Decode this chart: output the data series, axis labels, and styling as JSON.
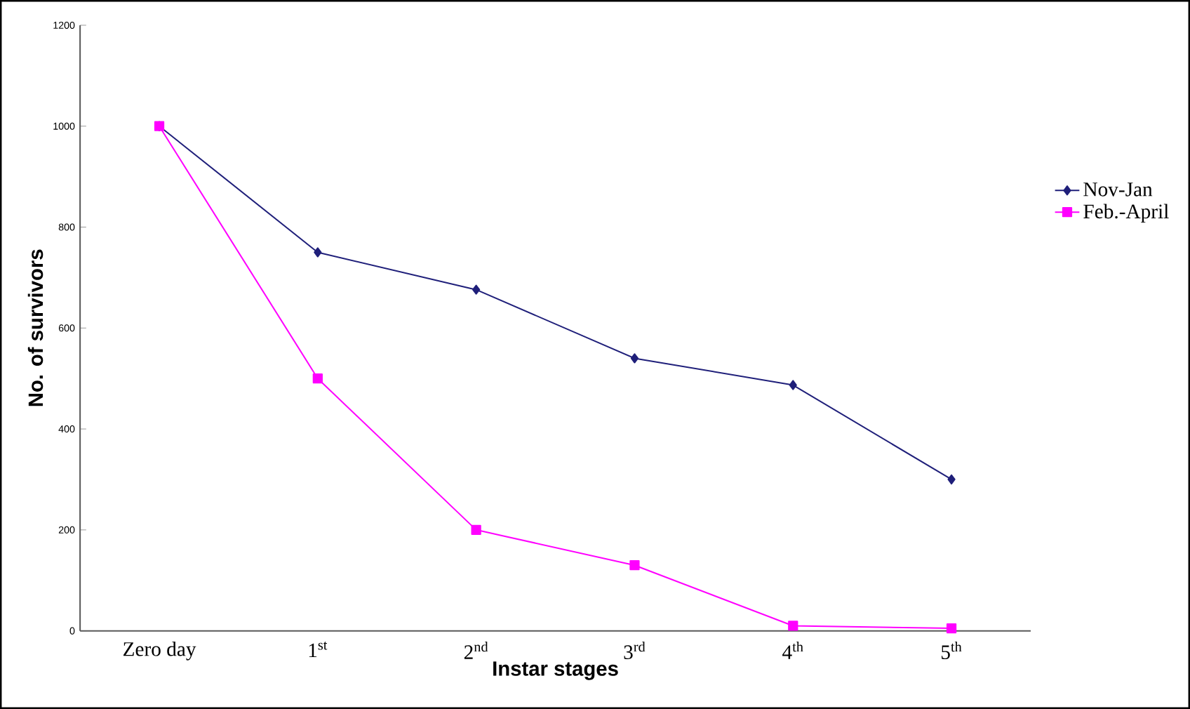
{
  "chart_data": {
    "type": "line",
    "xlabel": "Instar stages",
    "ylabel": "No. of survivors",
    "categories": [
      "Zero day",
      "1$^{st}$",
      "2$^{nd}$",
      "3$^{rd}$",
      "4$^{th}$",
      "5$^{th}$"
    ],
    "series": [
      {
        "name": "Nov-Jan",
        "color": "#1f1f7a",
        "marker": "diamond",
        "values": [
          1000,
          750,
          676,
          540,
          487,
          300
        ]
      },
      {
        "name": "Feb.-April",
        "color": "#ff00ff",
        "marker": "square",
        "values": [
          1000,
          500,
          200,
          130,
          10,
          5
        ]
      }
    ],
    "ylim": [
      0,
      1200
    ],
    "yticks": [
      0,
      200,
      400,
      600,
      800,
      1000,
      1200
    ],
    "grid": false,
    "legend": "right"
  }
}
